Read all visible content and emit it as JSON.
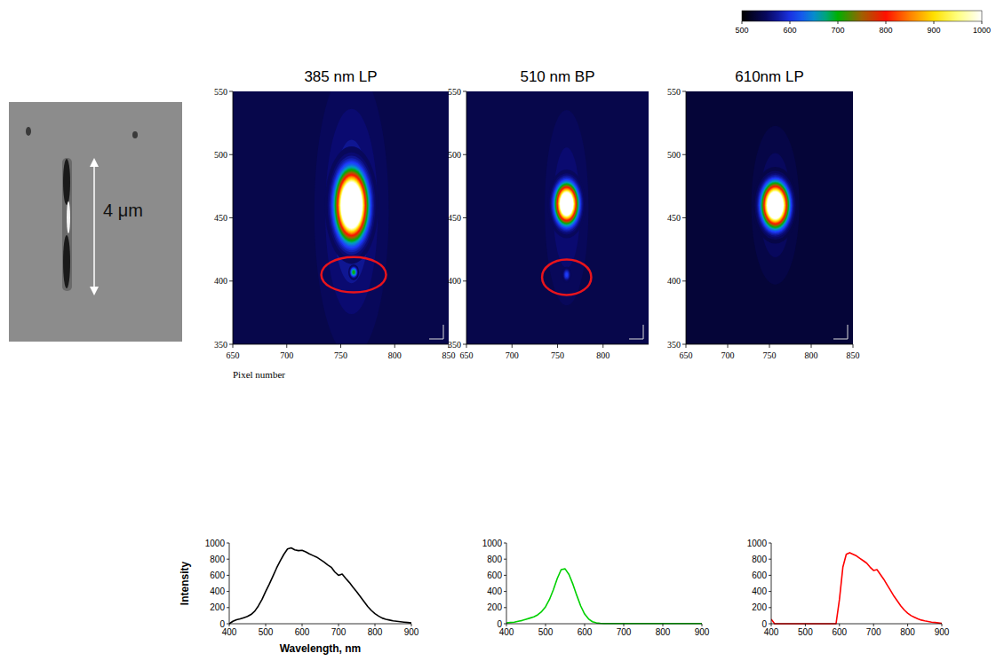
{
  "micrograph": {
    "scale_label": "4 μm"
  },
  "colorbar": {
    "range": [
      500,
      1000
    ],
    "ticks": [
      500,
      600,
      700,
      800,
      900,
      1000
    ]
  },
  "chart_data": [
    {
      "type": "image",
      "title": "385 nm LP",
      "xlabel": "Pixel number",
      "xlim": [
        650,
        850
      ],
      "xticks": [
        650,
        700,
        750,
        800,
        850
      ],
      "ylim": [
        350,
        550
      ],
      "yticks": [
        350,
        400,
        450,
        500,
        550
      ],
      "background": 540,
      "spots": [
        {
          "x": 760,
          "y": 455,
          "intensity": 590,
          "sx": 18,
          "sy": 60
        },
        {
          "x": 760,
          "y": 460,
          "intensity": 1500,
          "sx": 8,
          "sy": 15
        },
        {
          "x": 762,
          "y": 407,
          "intensity": 720,
          "sx": 2,
          "sy": 2.5
        }
      ],
      "circles": [
        {
          "x": 762,
          "y": 405,
          "rx": 30,
          "ry": 14
        }
      ]
    },
    {
      "type": "image",
      "title": "510 nm BP",
      "xlim": [
        650,
        850
      ],
      "xticks": [
        650,
        700,
        750,
        800
      ],
      "ylim": [
        350,
        550
      ],
      "yticks": [
        350,
        400,
        450,
        500,
        550
      ],
      "background": 540,
      "spots": [
        {
          "x": 760,
          "y": 458,
          "intensity": 575,
          "sx": 14,
          "sy": 45
        },
        {
          "x": 760,
          "y": 461,
          "intensity": 1300,
          "sx": 7,
          "sy": 9
        },
        {
          "x": 760,
          "y": 405,
          "intensity": 620,
          "sx": 2.5,
          "sy": 3
        }
      ],
      "circles": [
        {
          "x": 760,
          "y": 403,
          "rx": 27,
          "ry": 14
        }
      ]
    },
    {
      "type": "image",
      "title": "610nm LP",
      "xlim": [
        650,
        850
      ],
      "xticks": [
        650,
        700,
        750,
        800,
        850
      ],
      "ylim": [
        350,
        550
      ],
      "yticks": [
        350,
        400,
        450,
        500,
        550
      ],
      "background": 530,
      "spots": [
        {
          "x": 757,
          "y": 460,
          "intensity": 570,
          "sx": 16,
          "sy": 35
        },
        {
          "x": 757,
          "y": 460,
          "intensity": 1350,
          "sx": 9,
          "sy": 10
        }
      ],
      "circles": []
    },
    {
      "type": "line",
      "xlabel": "Wavelength, nm",
      "ylabel": "Intensity",
      "color": "#000000",
      "xlim": [
        400,
        900
      ],
      "xticks": [
        400,
        500,
        600,
        700,
        800,
        900
      ],
      "ylim": [
        0,
        1000
      ],
      "yticks": [
        0,
        200,
        400,
        600,
        800,
        1000
      ],
      "x": [
        400,
        410,
        420,
        430,
        440,
        450,
        460,
        470,
        480,
        490,
        500,
        510,
        520,
        530,
        540,
        550,
        560,
        570,
        580,
        590,
        600,
        610,
        620,
        630,
        640,
        650,
        660,
        670,
        680,
        690,
        700,
        710,
        720,
        730,
        740,
        750,
        760,
        770,
        780,
        790,
        800,
        810,
        820,
        830,
        840,
        850,
        860,
        870,
        880,
        890,
        900
      ],
      "values": [
        0,
        30,
        50,
        60,
        75,
        90,
        115,
        155,
        220,
        300,
        400,
        490,
        590,
        690,
        780,
        860,
        925,
        940,
        915,
        905,
        910,
        890,
        865,
        845,
        825,
        795,
        765,
        730,
        700,
        640,
        600,
        615,
        560,
        510,
        450,
        395,
        335,
        275,
        215,
        165,
        125,
        95,
        70,
        55,
        45,
        35,
        30,
        25,
        20,
        15,
        10
      ]
    },
    {
      "type": "line",
      "color": "#00d000",
      "xlim": [
        400,
        900
      ],
      "xticks": [
        400,
        500,
        600,
        700,
        800,
        900
      ],
      "ylim": [
        0,
        1000
      ],
      "yticks": [
        0,
        200,
        400,
        600,
        800,
        1000
      ],
      "x": [
        400,
        410,
        420,
        430,
        440,
        450,
        460,
        470,
        480,
        490,
        500,
        510,
        520,
        530,
        540,
        550,
        560,
        570,
        580,
        590,
        600,
        610,
        620,
        630,
        640,
        650,
        660,
        670,
        680,
        690,
        700,
        710,
        720,
        730,
        740,
        750,
        760,
        770,
        780,
        790,
        800,
        810,
        820,
        830,
        840,
        850,
        860,
        870,
        880,
        890,
        900
      ],
      "values": [
        10,
        15,
        20,
        30,
        40,
        55,
        70,
        85,
        110,
        150,
        210,
        300,
        420,
        560,
        670,
        680,
        610,
        490,
        350,
        220,
        120,
        60,
        25,
        10,
        5,
        3,
        3,
        3,
        3,
        3,
        3,
        3,
        3,
        3,
        3,
        3,
        3,
        3,
        3,
        3,
        3,
        3,
        3,
        3,
        3,
        3,
        3,
        3,
        3,
        3,
        3
      ]
    },
    {
      "type": "line",
      "color": "#ff0000",
      "xlim": [
        400,
        900
      ],
      "xticks": [
        400,
        500,
        600,
        700,
        800,
        900
      ],
      "ylim": [
        0,
        1000
      ],
      "yticks": [
        0,
        200,
        400,
        600,
        800,
        1000
      ],
      "x": [
        400,
        410,
        420,
        430,
        440,
        450,
        460,
        470,
        480,
        490,
        500,
        510,
        520,
        530,
        540,
        550,
        560,
        570,
        580,
        590,
        600,
        610,
        620,
        630,
        640,
        650,
        660,
        670,
        680,
        690,
        700,
        710,
        720,
        730,
        740,
        750,
        760,
        770,
        780,
        790,
        800,
        810,
        820,
        830,
        840,
        850,
        860,
        870,
        880,
        890,
        900
      ],
      "values": [
        55,
        0,
        0,
        0,
        0,
        0,
        0,
        0,
        0,
        0,
        0,
        0,
        0,
        0,
        0,
        0,
        0,
        0,
        0,
        0,
        300,
        700,
        860,
        880,
        860,
        840,
        810,
        780,
        750,
        700,
        660,
        670,
        610,
        550,
        480,
        410,
        340,
        280,
        220,
        170,
        130,
        100,
        80,
        60,
        45,
        35,
        28,
        20,
        15,
        10,
        5
      ]
    }
  ]
}
